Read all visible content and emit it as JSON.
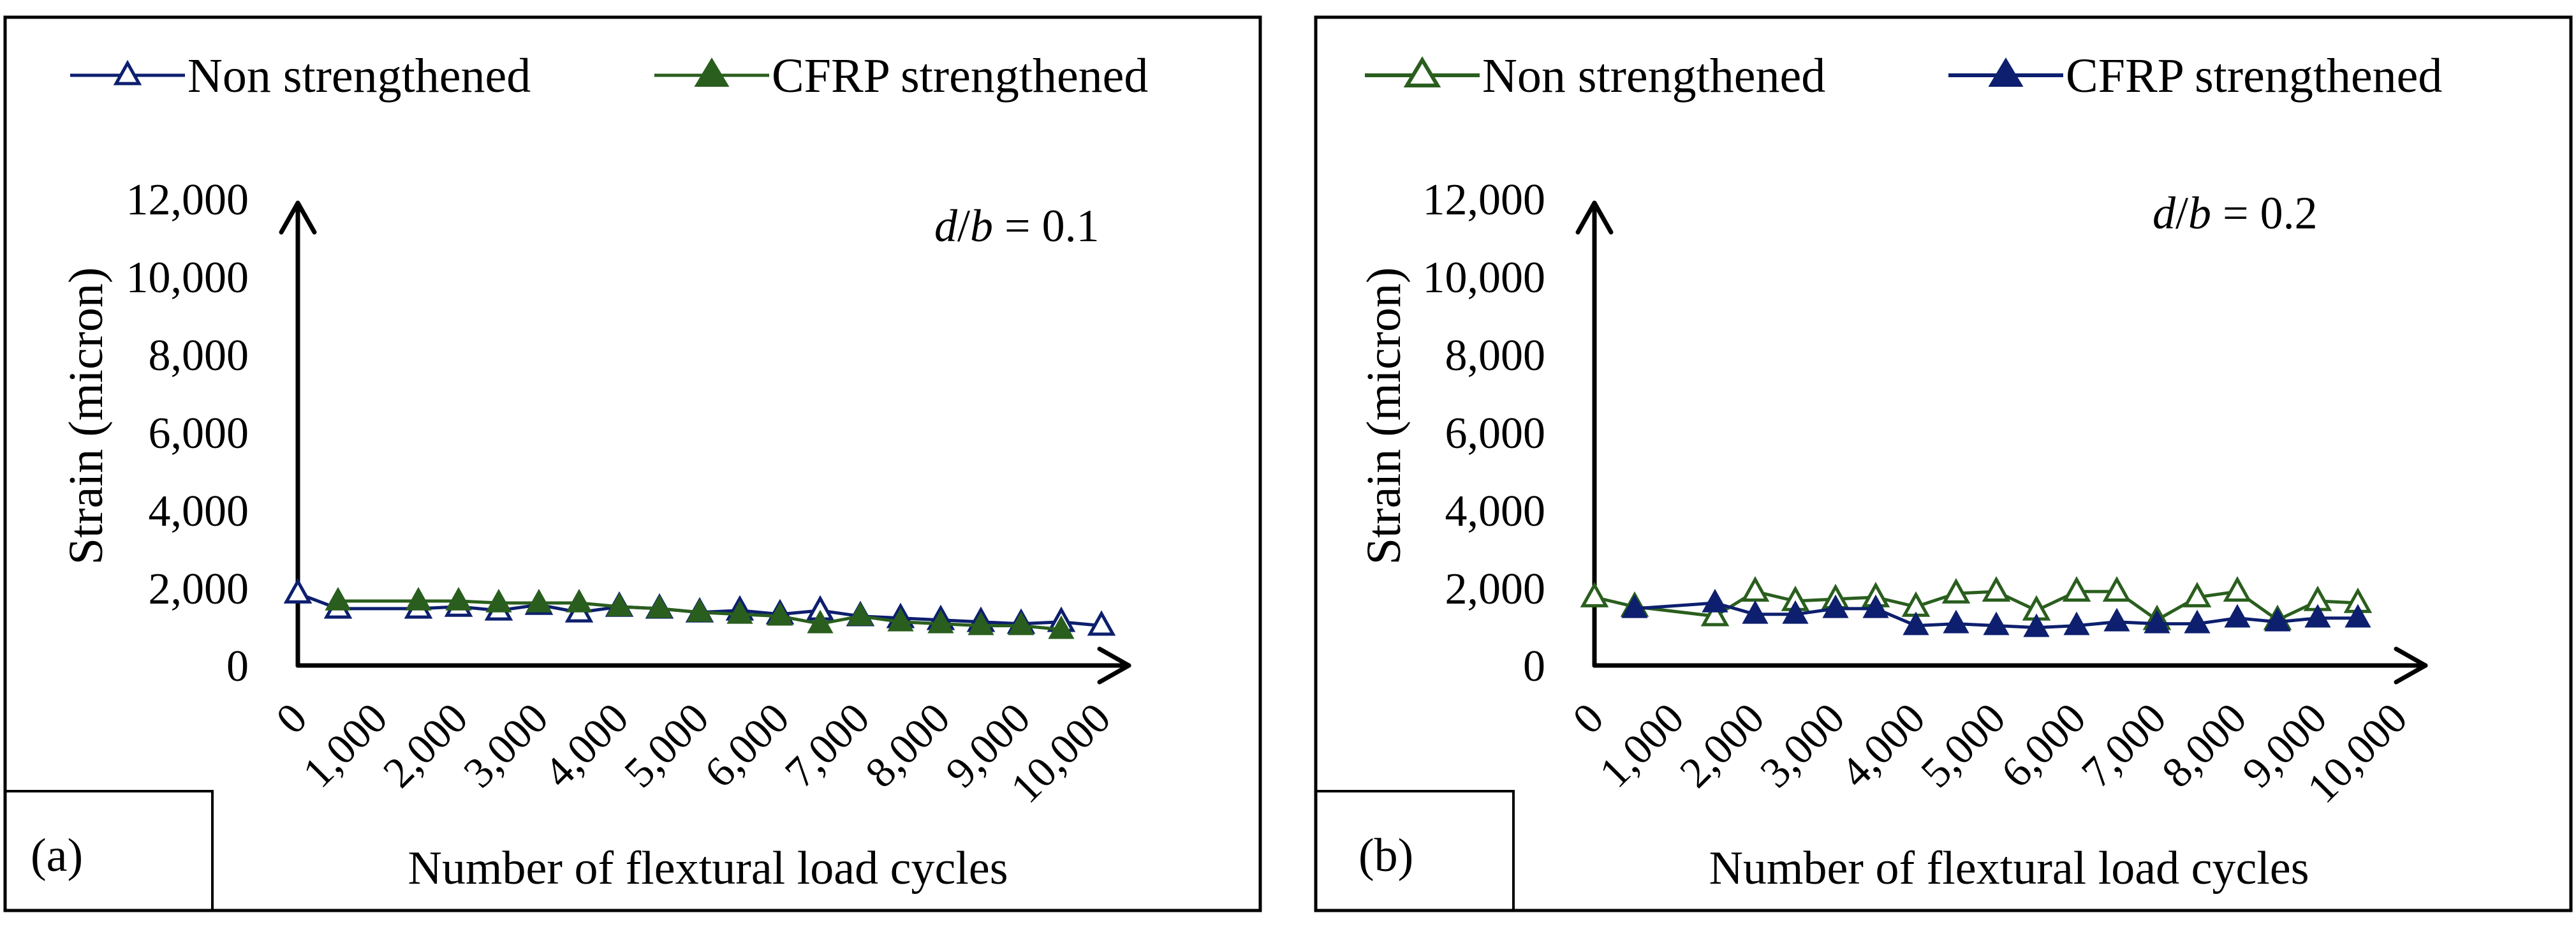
{
  "colors": {
    "navy": "#0d1f6e",
    "green": "#2a5e1e",
    "axis": "#000000",
    "frame": "#000000"
  },
  "x_ticks": [
    "0",
    "1,000",
    "2,000",
    "3,000",
    "4,000",
    "5,000",
    "6,000",
    "7,000",
    "8,000",
    "9,000",
    "10,000"
  ],
  "y_ticks": [
    "0",
    "2,000",
    "4,000",
    "6,000",
    "8,000",
    "10,000",
    "12,000"
  ],
  "chart_data": [
    {
      "type": "line",
      "panel_label": "(a)",
      "annotation": "d/b = 0.1",
      "xlabel": "Number of flextural load cycles",
      "ylabel": "Strain (micron)",
      "ylim": [
        0,
        12000
      ],
      "xlim": [
        0,
        10000
      ],
      "grid": false,
      "legend_position": "top",
      "series": [
        {
          "name": "Non strengthened",
          "color": "#0d1f6e",
          "marker": "open-triangle",
          "x": [
            0,
            500,
            1500,
            2000,
            2500,
            3000,
            3500,
            4000,
            4500,
            5000,
            5500,
            6000,
            6500,
            7000,
            7500,
            8000,
            8500,
            9000,
            9500,
            10000
          ],
          "y": [
            1900,
            1500,
            1500,
            1550,
            1450,
            1600,
            1400,
            1550,
            1500,
            1400,
            1450,
            1350,
            1450,
            1300,
            1250,
            1200,
            1150,
            1100,
            1150,
            1050
          ]
        },
        {
          "name": "CFRP strengthened",
          "color": "#2a5e1e",
          "marker": "filled-triangle",
          "x": [
            500,
            1500,
            2000,
            2500,
            3000,
            3500,
            4000,
            4500,
            5000,
            5500,
            6000,
            6500,
            7000,
            7500,
            8000,
            8500,
            9000,
            9500
          ],
          "y": [
            1700,
            1700,
            1700,
            1650,
            1650,
            1650,
            1550,
            1500,
            1400,
            1350,
            1300,
            1100,
            1300,
            1150,
            1100,
            1050,
            1050,
            950
          ]
        }
      ]
    },
    {
      "type": "line",
      "panel_label": "(b)",
      "annotation": "d/b = 0.2",
      "xlabel": "Number of flextural load cycles",
      "ylabel": "Strain (micron)",
      "ylim": [
        0,
        12000
      ],
      "xlim": [
        0,
        10000
      ],
      "grid": false,
      "legend_position": "top",
      "series": [
        {
          "name": "Non strengthened",
          "color": "#2a5e1e",
          "marker": "open-triangle",
          "x": [
            0,
            500,
            1500,
            2000,
            2500,
            3000,
            3500,
            4000,
            4500,
            5000,
            5500,
            6000,
            6500,
            7000,
            7500,
            8000,
            8500,
            9000,
            9500
          ],
          "y": [
            1800,
            1550,
            1300,
            1950,
            1700,
            1750,
            1800,
            1550,
            1900,
            1950,
            1450,
            1950,
            1950,
            1200,
            1800,
            1950,
            1200,
            1700,
            1650
          ]
        },
        {
          "name": "CFRP strengthened",
          "color": "#0d1f6e",
          "marker": "filled-triangle",
          "x": [
            500,
            1500,
            2000,
            2500,
            3000,
            3500,
            4000,
            4500,
            5000,
            5500,
            6000,
            6500,
            7000,
            7500,
            8000,
            8500,
            9000,
            9500
          ],
          "y": [
            1500,
            1650,
            1350,
            1350,
            1500,
            1500,
            1050,
            1100,
            1050,
            1000,
            1050,
            1150,
            1100,
            1100,
            1250,
            1150,
            1250,
            1250
          ]
        }
      ]
    }
  ]
}
